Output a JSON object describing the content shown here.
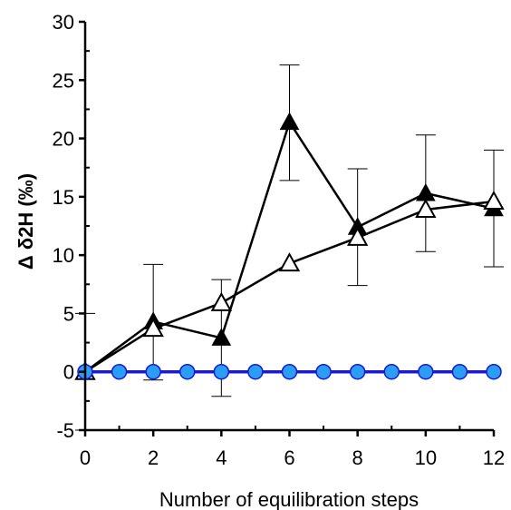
{
  "chart_data": {
    "type": "line",
    "title": "",
    "xlabel": "Number of equilibration steps",
    "ylabel": "Δ δ2H (‰)",
    "xlim": [
      0,
      12
    ],
    "ylim": [
      -5,
      30
    ],
    "x_ticks": [
      0,
      2,
      4,
      6,
      8,
      10,
      12
    ],
    "y_ticks": [
      -5,
      0,
      5,
      10,
      15,
      20,
      25,
      30
    ],
    "grid": false,
    "legend": "none",
    "series": [
      {
        "marker": "filled-triangle",
        "color": "#000000",
        "x": [
          0,
          2,
          4,
          6,
          8,
          10,
          12
        ],
        "y": [
          0,
          4.3,
          2.9,
          21.4,
          12.4,
          15.3,
          14.0
        ],
        "error_upper": [
          5,
          9.2,
          7.9,
          26.3,
          17.4,
          20.3,
          19.0
        ],
        "error_lower": [
          -5,
          -0.7,
          -2.1,
          16.4,
          7.4,
          10.3,
          9.0
        ]
      },
      {
        "marker": "open-triangle",
        "color": "#000000",
        "x": [
          0,
          2,
          4,
          6,
          8,
          10,
          12
        ],
        "y": [
          0,
          3.7,
          5.9,
          9.3,
          11.5,
          13.9,
          14.6
        ]
      },
      {
        "marker": "filled-circle",
        "color": "#1a1ad0",
        "fill": "#2a9df4",
        "x": [
          0,
          1,
          2,
          3,
          4,
          5,
          6,
          7,
          8,
          9,
          10,
          11,
          12
        ],
        "y": [
          0,
          0,
          0,
          0,
          0,
          0,
          0,
          0,
          0,
          0,
          0,
          0,
          0
        ]
      }
    ]
  }
}
